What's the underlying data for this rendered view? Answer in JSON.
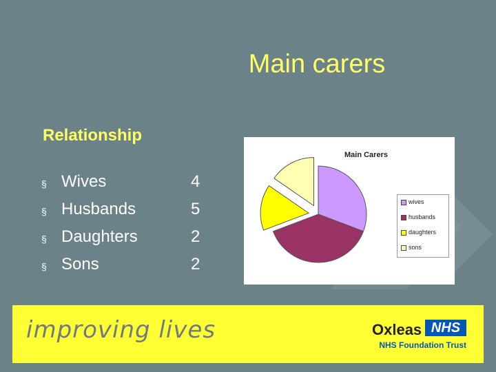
{
  "slide": {
    "title": "Main carers",
    "subtitle": "Relationship"
  },
  "list": [
    {
      "label": "Wives",
      "count": "4"
    },
    {
      "label": "Husbands",
      "count": "5"
    },
    {
      "label": "Daughters",
      "count": "2"
    },
    {
      "label": "Sons",
      "count": "2"
    }
  ],
  "chart_data": {
    "type": "pie",
    "title": "Main Carers",
    "categories": [
      "wives",
      "husbands",
      "daughters",
      "sons"
    ],
    "values": [
      4,
      5,
      2,
      2
    ],
    "colors": [
      "#cc99ff",
      "#993366",
      "#ffff00",
      "#ffffb3"
    ],
    "exploded": [
      "daughters",
      "sons"
    ],
    "legend_position": "right"
  },
  "footer": {
    "tagline": "improving lives",
    "org_name": "Oxleas",
    "nhs_mark": "NHS",
    "org_subtitle": "NHS Foundation Trust"
  }
}
